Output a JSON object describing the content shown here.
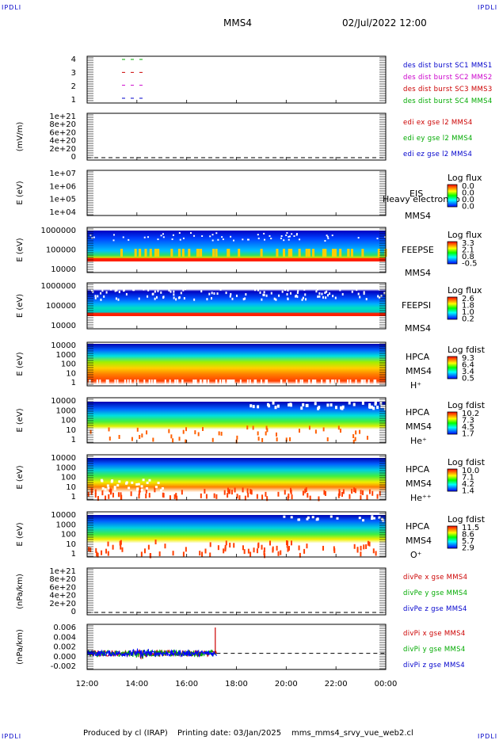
{
  "corner": "IPDLI",
  "header": {
    "spacecraft": "MMS4",
    "date": "02/Jul/2022 12:00"
  },
  "footer": {
    "produced": "Produced by cl (IRAP)",
    "printing": "Printing date: 03/Jan/2025",
    "file": "mms_mms4_srvy_vue_web2.cl"
  },
  "chart_data": {
    "type": "heatmap",
    "x_ticks": [
      "12:00",
      "14:00",
      "16:00",
      "18:00",
      "20:00",
      "22:00",
      "00:00"
    ],
    "x_range_hours": [
      12,
      24
    ],
    "panels": [
      {
        "id": "burst",
        "type": "line",
        "ylabel": "",
        "yticks": [
          "4",
          "3",
          "2",
          "1"
        ],
        "legend": [
          {
            "text": "des dist burst SC1 MMS1",
            "color": "#0000cc"
          },
          {
            "text": "des dist burst SC2 MMS2",
            "color": "#cc00cc"
          },
          {
            "text": "des dist burst SC3 MMS3",
            "color": "#cc0000"
          },
          {
            "text": "des dist burst SC4 MMS4",
            "color": "#00aa00"
          }
        ],
        "segments": [
          {
            "spacecraft": 4,
            "start": 13.4,
            "end": 14.3,
            "color": "#00aa00"
          },
          {
            "spacecraft": 3,
            "start": 13.4,
            "end": 14.3,
            "color": "#cc0000"
          },
          {
            "spacecraft": 2,
            "start": 13.4,
            "end": 14.3,
            "color": "#cc00cc"
          },
          {
            "spacecraft": 1,
            "start": 13.4,
            "end": 14.3,
            "color": "#0000cc"
          }
        ]
      },
      {
        "id": "edi",
        "type": "line",
        "ylabel": "(mV/m)",
        "yticks": [
          "1e+21",
          "8e+20",
          "6e+20",
          "4e+20",
          "2e+20",
          "0"
        ],
        "legend": [
          {
            "text": "edi ex gse l2 MMS4",
            "color": "#cc0000"
          },
          {
            "text": "edi ey gse l2 MMS4",
            "color": "#00aa00"
          },
          {
            "text": "edi ez gse l2 MMS4",
            "color": "#0000cc"
          }
        ]
      },
      {
        "id": "eis",
        "type": "heatmap",
        "ylabel": "E (eV)",
        "yticks": [
          "1e+07",
          "1e+06",
          "1e+05",
          "1e+04"
        ],
        "side": [
          "EIS",
          "Heavy electron to",
          "MMS4"
        ],
        "colorbar": {
          "title": "Log flux",
          "labels": [
            "0.0",
            "0.0",
            "0.0",
            "0.0"
          ]
        }
      },
      {
        "id": "feepse",
        "type": "heatmap",
        "ylabel": "E (eV)",
        "yticks": [
          "1000000",
          "100000",
          "10000"
        ],
        "side": [
          "FEEPSE",
          "MMS4"
        ],
        "colorbar": {
          "title": "Log flux",
          "labels": [
            "3.3",
            "2.1",
            "0.8",
            "-0.5"
          ]
        }
      },
      {
        "id": "feepsi",
        "type": "heatmap",
        "ylabel": "E (eV)",
        "yticks": [
          "1000000",
          "100000",
          "10000"
        ],
        "side": [
          "FEEPSI",
          "MMS4"
        ],
        "colorbar": {
          "title": "Log flux",
          "labels": [
            "2.6",
            "1.8",
            "1.0",
            "0.2"
          ]
        }
      },
      {
        "id": "hpca_h",
        "type": "heatmap",
        "ylabel": "E (eV)",
        "yticks": [
          "10000",
          "1000",
          "100",
          "10",
          "1"
        ],
        "side": [
          "HPCA",
          "MMS4",
          "H⁺"
        ],
        "colorbar": {
          "title": "Log fdist",
          "labels": [
            "9.3",
            "6.4",
            "3.4",
            "0.5"
          ]
        }
      },
      {
        "id": "hpca_he",
        "type": "heatmap",
        "ylabel": "E (eV)",
        "yticks": [
          "10000",
          "1000",
          "100",
          "10",
          "1"
        ],
        "side": [
          "HPCA",
          "MMS4",
          "He⁺"
        ],
        "colorbar": {
          "title": "Log fdist",
          "labels": [
            "10.2",
            "7.3",
            "4.5",
            "1.7"
          ]
        }
      },
      {
        "id": "hpca_hepp",
        "type": "heatmap",
        "ylabel": "E (eV)",
        "yticks": [
          "10000",
          "1000",
          "100",
          "10",
          "1"
        ],
        "side": [
          "HPCA",
          "MMS4",
          "He⁺⁺"
        ],
        "colorbar": {
          "title": "Log fdist",
          "labels": [
            "10.0",
            "7.1",
            "4.2",
            "1.4"
          ]
        }
      },
      {
        "id": "hpca_o",
        "type": "heatmap",
        "ylabel": "E (eV)",
        "yticks": [
          "10000",
          "1000",
          "100",
          "10",
          "1"
        ],
        "side": [
          "HPCA",
          "MMS4",
          "O⁺"
        ],
        "colorbar": {
          "title": "Log fdist",
          "labels": [
            "11.5",
            "8.6",
            "5.7",
            "2.9"
          ]
        }
      },
      {
        "id": "divpe",
        "type": "line",
        "ylabel": "(nPa/km)",
        "yticks": [
          "1e+21",
          "8e+20",
          "6e+20",
          "4e+20",
          "2e+20",
          "0"
        ],
        "legend": [
          {
            "text": "divPe x gse MMS4",
            "color": "#cc0000"
          },
          {
            "text": "divPe y gse MMS4",
            "color": "#00aa00"
          },
          {
            "text": "divPe z gse MMS4",
            "color": "#0000cc"
          }
        ]
      },
      {
        "id": "divpi",
        "type": "line",
        "ylabel": "(nPa/km)",
        "yticks": [
          "0.006",
          "0.004",
          "0.002",
          "0.000",
          "-0.002"
        ],
        "ylim": [
          -0.003,
          0.006
        ],
        "data_end_hour": 17.2,
        "spike": {
          "hour": 17.15,
          "value": 0.006
        },
        "legend": [
          {
            "text": "divPi x gse MMS4",
            "color": "#cc0000"
          },
          {
            "text": "divPi y gse MMS4",
            "color": "#00aa00"
          },
          {
            "text": "divPi z gse MMS4",
            "color": "#0000cc"
          }
        ]
      }
    ]
  }
}
